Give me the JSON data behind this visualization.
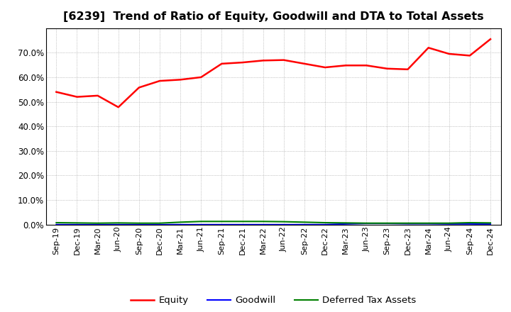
{
  "title": "[6239]  Trend of Ratio of Equity, Goodwill and DTA to Total Assets",
  "x_labels": [
    "Sep-19",
    "Dec-19",
    "Mar-20",
    "Jun-20",
    "Sep-20",
    "Dec-20",
    "Mar-21",
    "Jun-21",
    "Sep-21",
    "Dec-21",
    "Mar-22",
    "Jun-22",
    "Sep-22",
    "Dec-22",
    "Mar-23",
    "Jun-23",
    "Sep-23",
    "Dec-23",
    "Mar-24",
    "Jun-24",
    "Sep-24",
    "Dec-24"
  ],
  "equity": [
    0.54,
    0.52,
    0.525,
    0.478,
    0.558,
    0.585,
    0.59,
    0.6,
    0.655,
    0.66,
    0.668,
    0.67,
    0.655,
    0.64,
    0.648,
    0.648,
    0.635,
    0.632,
    0.72,
    0.695,
    0.688,
    0.755
  ],
  "goodwill": [
    0.0,
    0.0,
    0.0,
    0.0,
    0.0,
    0.0,
    0.0,
    0.0,
    0.0,
    0.0,
    0.0,
    0.0,
    0.0,
    0.0,
    0.003,
    0.005,
    0.005,
    0.004,
    0.004,
    0.003,
    0.003,
    0.002
  ],
  "dta": [
    0.008,
    0.007,
    0.006,
    0.007,
    0.006,
    0.006,
    0.01,
    0.013,
    0.013,
    0.013,
    0.013,
    0.012,
    0.01,
    0.008,
    0.007,
    0.006,
    0.006,
    0.006,
    0.006,
    0.006,
    0.008,
    0.007
  ],
  "equity_color": "#FF0000",
  "goodwill_color": "#0000FF",
  "dta_color": "#008000",
  "ylim": [
    0.0,
    0.8
  ],
  "yticks": [
    0.0,
    0.1,
    0.2,
    0.3,
    0.4,
    0.5,
    0.6,
    0.7
  ],
  "background_color": "#FFFFFF",
  "grid_color": "#999999",
  "title_fontsize": 11.5,
  "legend_labels": [
    "Equity",
    "Goodwill",
    "Deferred Tax Assets"
  ]
}
